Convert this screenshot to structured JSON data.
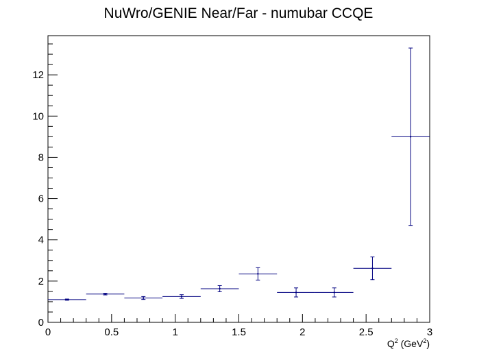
{
  "chart_data": {
    "type": "scatter",
    "title": "NuWro/GENIE Near/Far - numubar CCQE",
    "xlabel": {
      "prefix": "Q",
      "sup1": "2",
      "middle": " (GeV",
      "sup2": "2",
      "suffix": ")"
    },
    "ylabel": "",
    "xlim": [
      0,
      3
    ],
    "ylim": [
      0,
      13.9
    ],
    "x_ticks": [
      0,
      0.5,
      1,
      1.5,
      2,
      2.5,
      3
    ],
    "x_tick_labels": [
      "0",
      "0.5",
      "1",
      "1.5",
      "2",
      "2.5",
      "3"
    ],
    "y_ticks": [
      0,
      2,
      4,
      6,
      8,
      10,
      12
    ],
    "y_tick_labels": [
      "0",
      "2",
      "4",
      "6",
      "8",
      "10",
      "12"
    ],
    "grid": false,
    "legend": "none",
    "series": [
      {
        "color": "#000080",
        "points": [
          {
            "x": 0.15,
            "xerr": 0.15,
            "y": 1.1,
            "yerr": 0.03
          },
          {
            "x": 0.45,
            "xerr": 0.15,
            "y": 1.37,
            "yerr": 0.04
          },
          {
            "x": 0.75,
            "xerr": 0.15,
            "y": 1.18,
            "yerr": 0.07
          },
          {
            "x": 1.05,
            "xerr": 0.15,
            "y": 1.25,
            "yerr": 0.09
          },
          {
            "x": 1.35,
            "xerr": 0.15,
            "y": 1.63,
            "yerr": 0.15
          },
          {
            "x": 1.65,
            "xerr": 0.15,
            "y": 2.35,
            "yerr": 0.3
          },
          {
            "x": 1.95,
            "xerr": 0.15,
            "y": 1.45,
            "yerr": 0.22
          },
          {
            "x": 2.25,
            "xerr": 0.15,
            "y": 1.45,
            "yerr": 0.22
          },
          {
            "x": 2.55,
            "xerr": 0.15,
            "y": 2.62,
            "yerr": 0.55
          },
          {
            "x": 2.85,
            "xerr": 0.15,
            "y": 9.0,
            "yerr": 4.3
          }
        ]
      }
    ]
  }
}
